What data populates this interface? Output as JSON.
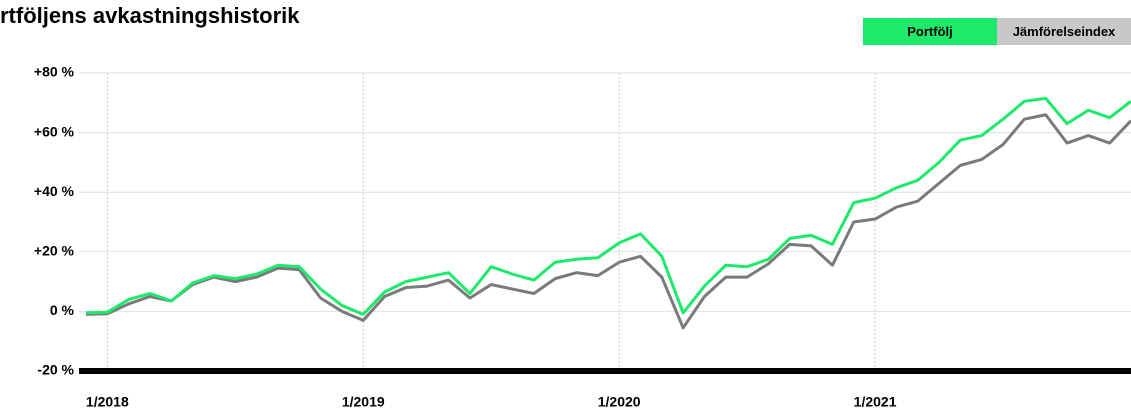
{
  "chart_data": {
    "type": "line",
    "title": "rtföljens avkastningshistorik",
    "x": [
      "2017-12",
      "2018-01",
      "2018-02",
      "2018-03",
      "2018-04",
      "2018-05",
      "2018-06",
      "2018-07",
      "2018-08",
      "2018-09",
      "2018-10",
      "2018-11",
      "2018-12",
      "2019-01",
      "2019-02",
      "2019-03",
      "2019-04",
      "2019-05",
      "2019-06",
      "2019-07",
      "2019-08",
      "2019-09",
      "2019-10",
      "2019-11",
      "2019-12",
      "2020-01",
      "2020-02",
      "2020-03",
      "2020-04",
      "2020-05",
      "2020-06",
      "2020-07",
      "2020-08",
      "2020-09",
      "2020-10",
      "2020-11",
      "2020-12",
      "2021-01",
      "2021-02",
      "2021-03",
      "2021-04",
      "2021-05",
      "2021-06",
      "2021-07",
      "2021-08",
      "2021-09",
      "2021-10",
      "2021-11",
      "2021-12",
      "2022-01"
    ],
    "series": [
      {
        "name": "Portfölj",
        "color": "#1de96b",
        "values": [
          -0.5,
          -0.3,
          4,
          6,
          3.5,
          9.5,
          12,
          11,
          12.5,
          15.5,
          15,
          7.5,
          2,
          -1,
          6.5,
          10,
          11.5,
          13,
          6,
          15,
          12.5,
          10.5,
          16.5,
          17.5,
          18,
          23,
          26,
          18.5,
          -0.5,
          8.5,
          15.5,
          15,
          17.5,
          24.5,
          25.5,
          22.5,
          36.5,
          38,
          41.5,
          44,
          50,
          57.5,
          59,
          64.5,
          70.5,
          71.5,
          63,
          67.5,
          65,
          70.5
        ]
      },
      {
        "name": "Jämförelseindex",
        "color": "#7a7a7a",
        "values": [
          -1,
          -0.8,
          2.5,
          5,
          3.5,
          9,
          11.5,
          10,
          11.5,
          14.5,
          14,
          4.5,
          0,
          -3,
          5,
          8,
          8.5,
          10.5,
          4.5,
          9,
          7.5,
          6,
          11,
          13,
          12,
          16.5,
          18.5,
          11.5,
          -5.5,
          5,
          11.5,
          11.5,
          16,
          22.5,
          22,
          15.5,
          30,
          31,
          35,
          37,
          43,
          49,
          51,
          56,
          64.5,
          66,
          56.5,
          59,
          56.5,
          64
        ]
      }
    ],
    "xlim": [
      "2017-12",
      "2022-01"
    ],
    "xticks": [
      {
        "value": "2018-01",
        "label": "1/2018"
      },
      {
        "value": "2019-01",
        "label": "1/2019"
      },
      {
        "value": "2020-01",
        "label": "1/2020"
      },
      {
        "value": "2021-01",
        "label": "1/2021"
      }
    ],
    "ylim": [
      -20,
      80
    ],
    "yticks": [
      {
        "value": -20,
        "label": "-20 %"
      },
      {
        "value": 0,
        "label": "0 %"
      },
      {
        "value": 20,
        "label": "+20 %"
      },
      {
        "value": 40,
        "label": "+40 %"
      },
      {
        "value": 60,
        "label": "+60 %"
      },
      {
        "value": 80,
        "label": "+80 %"
      }
    ],
    "grid": true,
    "legend": "top-right"
  }
}
